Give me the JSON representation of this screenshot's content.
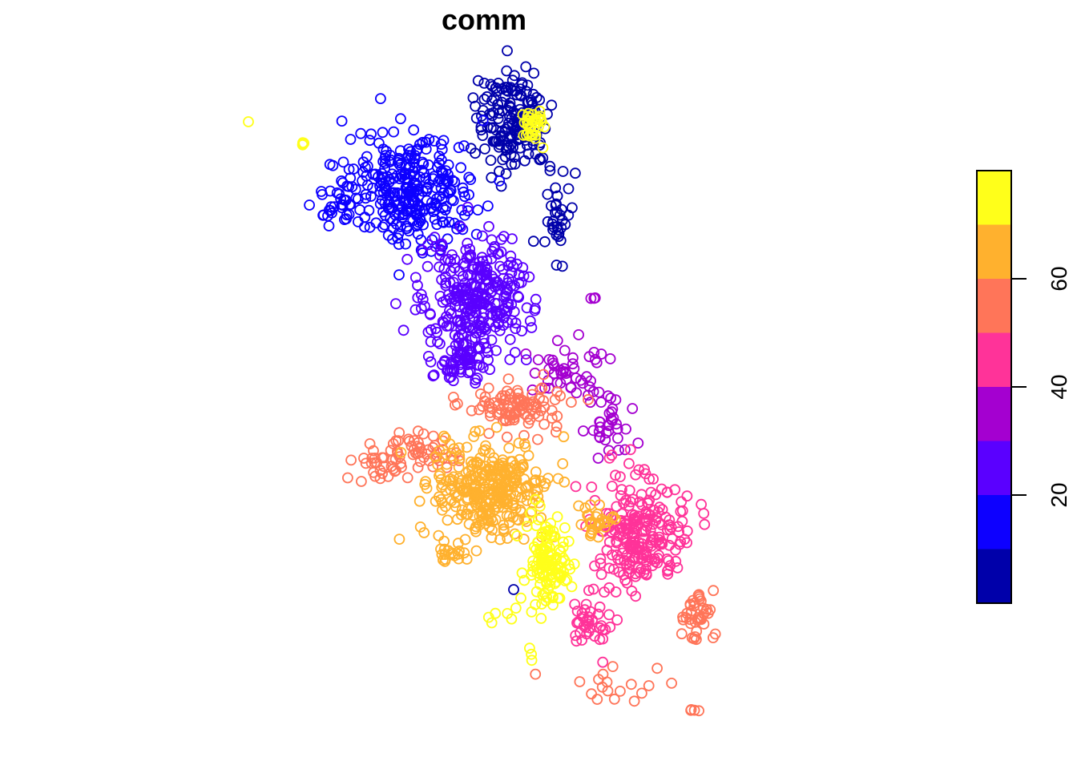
{
  "chart_data": {
    "type": "scatter",
    "title": "comm",
    "xlabel": "",
    "ylabel": "",
    "marker": "open-circle",
    "axes_shown": false,
    "grid": false,
    "legend": {
      "type": "colorbar",
      "placement": "right",
      "range": [
        0,
        80
      ],
      "ticks": [
        20,
        40,
        60
      ],
      "tick_labels": [
        "20",
        "40",
        "60"
      ],
      "bins": [
        {
          "from": 0,
          "to": 10,
          "color": "#0000AA"
        },
        {
          "from": 10,
          "to": 20,
          "color": "#0D00FF"
        },
        {
          "from": 20,
          "to": 30,
          "color": "#5A00FF"
        },
        {
          "from": 30,
          "to": 40,
          "color": "#A400D0"
        },
        {
          "from": 40,
          "to": 50,
          "color": "#FF3399"
        },
        {
          "from": 50,
          "to": 60,
          "color": "#FF7559"
        },
        {
          "from": 60,
          "to": 70,
          "color": "#FFB12E"
        },
        {
          "from": 70,
          "to": 80,
          "color": "#FFFF1A"
        }
      ]
    },
    "clusters": [
      {
        "name": "navy-north",
        "center": [
          640,
          150
        ],
        "spread": [
          38,
          55
        ],
        "count": 170,
        "value": 5
      },
      {
        "name": "navy-east-column",
        "center": [
          695,
          270
        ],
        "spread": [
          14,
          45
        ],
        "count": 35,
        "value": 5
      },
      {
        "name": "navy-isolated",
        "center": [
          641,
          736
        ],
        "spread": [
          0,
          0
        ],
        "count": 1,
        "value": 5
      },
      {
        "name": "blue-northwest",
        "center": [
          515,
          235
        ],
        "spread": [
          65,
          55
        ],
        "count": 300,
        "value": 15
      },
      {
        "name": "blue-west-arm",
        "center": [
          425,
          255
        ],
        "spread": [
          28,
          20
        ],
        "count": 35,
        "value": 15
      },
      {
        "name": "violet-center",
        "center": [
          590,
          370
        ],
        "spread": [
          55,
          65
        ],
        "count": 300,
        "value": 25
      },
      {
        "name": "violet-south-tail",
        "center": [
          578,
          450
        ],
        "spread": [
          30,
          22
        ],
        "count": 60,
        "value": 25
      },
      {
        "name": "purple-middle",
        "center": [
          710,
          465
        ],
        "spread": [
          40,
          30
        ],
        "count": 45,
        "value": 35
      },
      {
        "name": "purple-east-band",
        "center": [
          757,
          530
        ],
        "spread": [
          25,
          32
        ],
        "count": 35,
        "value": 35
      },
      {
        "name": "purple-isolated",
        "center": [
          741,
          372
        ],
        "spread": [
          2,
          2
        ],
        "count": 3,
        "value": 35
      },
      {
        "name": "pink-southeast",
        "center": [
          800,
          665
        ],
        "spread": [
          48,
          55
        ],
        "count": 230,
        "value": 45
      },
      {
        "name": "pink-south-tail",
        "center": [
          735,
          780
        ],
        "spread": [
          25,
          30
        ],
        "count": 40,
        "value": 45
      },
      {
        "name": "salmon-north-arc",
        "center": [
          645,
          505
        ],
        "spread": [
          50,
          25
        ],
        "count": 100,
        "value": 55
      },
      {
        "name": "salmon-west",
        "center": [
          520,
          565
        ],
        "spread": [
          40,
          20
        ],
        "count": 55,
        "value": 55
      },
      {
        "name": "salmon-far-west",
        "center": [
          470,
          585
        ],
        "spread": [
          20,
          15
        ],
        "count": 20,
        "value": 55
      },
      {
        "name": "salmon-southeast",
        "center": [
          870,
          770
        ],
        "spread": [
          18,
          30
        ],
        "count": 40,
        "value": 55
      },
      {
        "name": "salmon-south-scatter",
        "center": [
          760,
          860
        ],
        "spread": [
          60,
          20
        ],
        "count": 18,
        "value": 55
      },
      {
        "name": "salmon-far-south",
        "center": [
          862,
          886
        ],
        "spread": [
          8,
          2
        ],
        "count": 4,
        "value": 55
      },
      {
        "name": "orange-center",
        "center": [
          610,
          610
        ],
        "spread": [
          55,
          50
        ],
        "count": 320,
        "value": 65
      },
      {
        "name": "orange-east",
        "center": [
          745,
          650
        ],
        "spread": [
          22,
          20
        ],
        "count": 30,
        "value": 65
      },
      {
        "name": "orange-southwest",
        "center": [
          565,
          695
        ],
        "spread": [
          18,
          15
        ],
        "count": 20,
        "value": 65
      },
      {
        "name": "yellow-south-center",
        "center": [
          682,
          705
        ],
        "spread": [
          22,
          45
        ],
        "count": 130,
        "value": 75
      },
      {
        "name": "yellow-north",
        "center": [
          666,
          155
        ],
        "spread": [
          12,
          18
        ],
        "count": 35,
        "value": 75
      },
      {
        "name": "yellow-west-outlier",
        "center": [
          378,
          180
        ],
        "spread": [
          2,
          2
        ],
        "count": 4,
        "value": 75
      },
      {
        "name": "yellow-far-west-outlier",
        "center": [
          310,
          152
        ],
        "spread": [
          0,
          0
        ],
        "count": 1,
        "value": 75
      },
      {
        "name": "yellow-south-scatter",
        "center": [
          625,
          770
        ],
        "spread": [
          25,
          12
        ],
        "count": 6,
        "value": 75
      },
      {
        "name": "yellow-south-outliers",
        "center": [
          663,
          815
        ],
        "spread": [
          3,
          10
        ],
        "count": 3,
        "value": 75
      }
    ]
  }
}
